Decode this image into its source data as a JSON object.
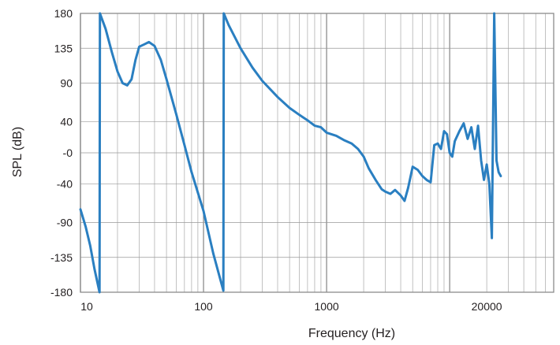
{
  "chart_data": {
    "type": "line",
    "title": "",
    "xlabel": "Frequency (Hz)",
    "ylabel": "SPL (dB)",
    "x_scale": "log",
    "xlim": [
      10,
      70000
    ],
    "ylim": [
      -180,
      180
    ],
    "grid": true,
    "legend": "none",
    "x_tick_values": [
      10,
      100,
      1000,
      10000,
      20000
    ],
    "x_tick_labels": [
      "10",
      "100",
      "1000",
      "",
      "20000"
    ],
    "y_tick_labels": [
      "180",
      "135",
      "90",
      "40",
      "-0",
      "-40",
      "-90",
      "-135",
      "-180"
    ],
    "colors": {
      "series": "#2a7fc1",
      "grid": "#999999",
      "major_grid": "#8c8c8c",
      "frame": "#8c8c8c"
    },
    "series": [
      {
        "points": [
          [
            10,
            -73
          ],
          [
            11,
            -95
          ],
          [
            12,
            -120
          ],
          [
            13,
            -150
          ],
          [
            14.3,
            -180
          ],
          [
            14.4,
            180
          ],
          [
            16,
            160
          ],
          [
            18,
            130
          ],
          [
            20,
            105
          ],
          [
            22,
            90
          ],
          [
            24,
            87
          ],
          [
            26,
            95
          ],
          [
            28,
            120
          ],
          [
            30,
            137
          ],
          [
            33,
            140
          ],
          [
            36,
            143
          ],
          [
            40,
            138
          ],
          [
            45,
            120
          ],
          [
            50,
            95
          ],
          [
            60,
            50
          ],
          [
            70,
            10
          ],
          [
            80,
            -25
          ],
          [
            100,
            -75
          ],
          [
            120,
            -130
          ],
          [
            145,
            -178
          ],
          [
            146,
            180
          ],
          [
            160,
            165
          ],
          [
            200,
            135
          ],
          [
            250,
            110
          ],
          [
            300,
            93
          ],
          [
            400,
            72
          ],
          [
            500,
            58
          ],
          [
            600,
            49
          ],
          [
            700,
            42
          ],
          [
            800,
            35
          ],
          [
            900,
            33
          ],
          [
            1000,
            26
          ],
          [
            1200,
            22
          ],
          [
            1400,
            16
          ],
          [
            1600,
            12
          ],
          [
            1800,
            5
          ],
          [
            2000,
            -5
          ],
          [
            2200,
            -20
          ],
          [
            2500,
            -35
          ],
          [
            2800,
            -47
          ],
          [
            3000,
            -50
          ],
          [
            3300,
            -53
          ],
          [
            3600,
            -48
          ],
          [
            4000,
            -55
          ],
          [
            4300,
            -62
          ],
          [
            4600,
            -45
          ],
          [
            5000,
            -18
          ],
          [
            5500,
            -22
          ],
          [
            6000,
            -30
          ],
          [
            6500,
            -35
          ],
          [
            7000,
            -38
          ],
          [
            7500,
            10
          ],
          [
            8000,
            12
          ],
          [
            8500,
            5
          ],
          [
            9000,
            28
          ],
          [
            9500,
            24
          ],
          [
            10000,
            0
          ],
          [
            10500,
            -5
          ],
          [
            11000,
            15
          ],
          [
            12000,
            28
          ],
          [
            13000,
            38
          ],
          [
            14000,
            18
          ],
          [
            15000,
            33
          ],
          [
            16000,
            5
          ],
          [
            17000,
            35
          ],
          [
            18000,
            -10
          ],
          [
            19000,
            -35
          ],
          [
            20000,
            -15
          ],
          [
            21000,
            -40
          ],
          [
            22000,
            -110
          ],
          [
            23000,
            180
          ],
          [
            24000,
            -10
          ],
          [
            25000,
            -25
          ],
          [
            26000,
            -30
          ]
        ]
      }
    ]
  }
}
